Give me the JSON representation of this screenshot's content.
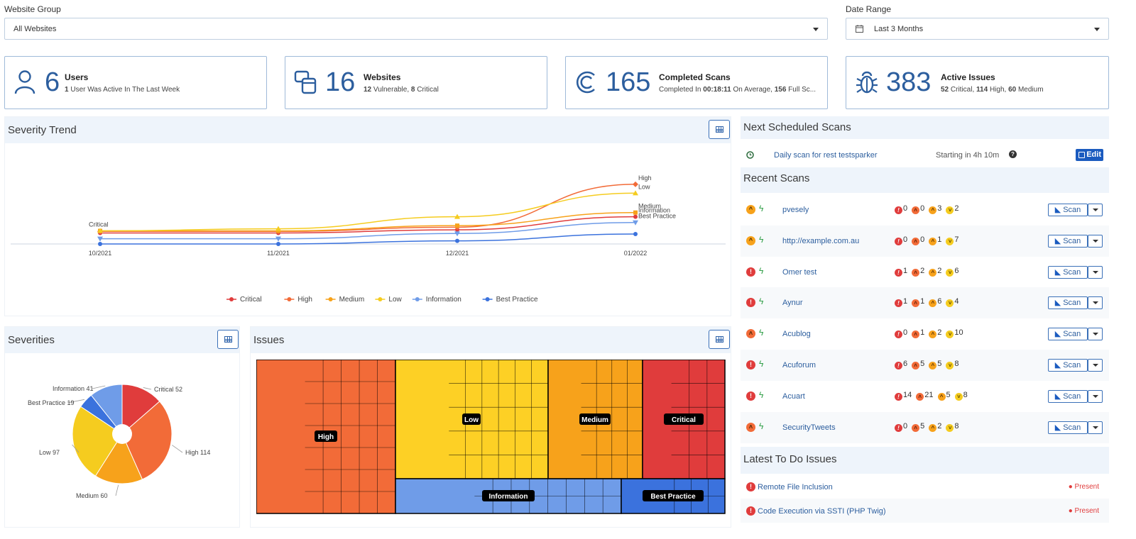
{
  "filters": {
    "website_group_label": "Website Group",
    "website_group_value": "All Websites",
    "date_range_label": "Date Range",
    "date_range_value": "Last 3 Months"
  },
  "cards": [
    {
      "icon": "users-icon",
      "value": "6",
      "title": "Users",
      "sub_bold": "1",
      "sub_rest": " User Was Active In The Last Week"
    },
    {
      "icon": "websites-icon",
      "value": "16",
      "title": "Websites",
      "sub_html": [
        "12",
        " Vulnerable, ",
        "8",
        " Critical"
      ]
    },
    {
      "icon": "scans-icon",
      "value": "165",
      "title": "Completed Scans",
      "sub_html": [
        "Completed In ",
        "00:18:11",
        " On Average, ",
        "156",
        " Full Sc..."
      ]
    },
    {
      "icon": "bug-icon",
      "value": "383",
      "title": "Active Issues",
      "sub_html": [
        "52",
        " Critical, ",
        "114",
        " High, ",
        "60",
        " Medium"
      ]
    }
  ],
  "severity_trend": {
    "title": "Severity Trend",
    "chart_data": {
      "type": "line",
      "categories": [
        "10/2021",
        "11/2021",
        "12/2021",
        "01/2022"
      ],
      "series": [
        {
          "name": "Critical",
          "color": "#e03c3c",
          "values": [
            21,
            21,
            27,
            52
          ],
          "end_label": "Information"
        },
        {
          "name": "High",
          "color": "#f26b38",
          "values": [
            24,
            24,
            32,
            114
          ],
          "end_label": "High"
        },
        {
          "name": "Medium",
          "color": "#f7a21b",
          "values": [
            25,
            25,
            35,
            60
          ],
          "end_label": "Medium"
        },
        {
          "name": "Low",
          "color": "#f5cc1f",
          "values": [
            25,
            29,
            52,
            97
          ],
          "end_label": "Low"
        },
        {
          "name": "Information",
          "color": "#6f9ce8",
          "values": [
            10,
            10,
            20,
            41
          ],
          "end_label": "Best Practice"
        },
        {
          "name": "Best Practice",
          "color": "#3b72dd",
          "values": [
            0,
            0,
            6,
            19
          ],
          "end_label": ""
        }
      ],
      "start_label": "Critical",
      "legend": [
        "Critical",
        "High",
        "Medium",
        "Low",
        "Information",
        "Best Practice"
      ],
      "ylim": [
        0,
        130
      ]
    }
  },
  "severities": {
    "title": "Severities",
    "chart_data": {
      "type": "pie",
      "slices": [
        {
          "label": "Critical",
          "value": 52,
          "color": "#e03c3c",
          "text": "Critical 52"
        },
        {
          "label": "High",
          "value": 114,
          "color": "#f26b38",
          "text": "High 114"
        },
        {
          "label": "Medium",
          "value": 60,
          "color": "#f7a21b",
          "text": "Medium 60"
        },
        {
          "label": "Low",
          "value": 97,
          "color": "#f5cc1f",
          "text": "Low 97"
        },
        {
          "label": "Best Practice",
          "value": 19,
          "color": "#3b72dd",
          "text": "Best Practice 19"
        },
        {
          "label": "Information",
          "value": 41,
          "color": "#6f9ce8",
          "text": "Information 41"
        }
      ]
    }
  },
  "issues": {
    "title": "Issues",
    "groups": [
      {
        "name": "High",
        "color": "#f26b38"
      },
      {
        "name": "Low",
        "color": "#fdd025"
      },
      {
        "name": "Medium",
        "color": "#f7a21b"
      },
      {
        "name": "Critical",
        "color": "#e03c3c"
      },
      {
        "name": "Information",
        "color": "#6f9ce8"
      },
      {
        "name": "Best Practice",
        "color": "#3b72dd"
      }
    ]
  },
  "next_scheduled": {
    "title": "Next Scheduled Scans",
    "name": "Daily scan for rest testsparker",
    "starting": "Starting in 4h 10m",
    "edit_label": "Edit"
  },
  "recent_scans": {
    "title": "Recent Scans",
    "scan_label": "Scan",
    "rows": [
      {
        "name": "pvesely",
        "sev": "m",
        "c": "0",
        "h": "0",
        "m": "3",
        "l": "2"
      },
      {
        "name": "http://example.com.au",
        "sev": "m",
        "c": "0",
        "h": "0",
        "m": "1",
        "l": "7"
      },
      {
        "name": "Omer test",
        "sev": "c",
        "c": "1",
        "h": "2",
        "m": "2",
        "l": "6"
      },
      {
        "name": "Aynur",
        "sev": "c",
        "c": "1",
        "h": "1",
        "m": "6",
        "l": "4"
      },
      {
        "name": "Acublog",
        "sev": "h",
        "c": "0",
        "h": "1",
        "m": "2",
        "l": "10"
      },
      {
        "name": "Acuforum",
        "sev": "c",
        "c": "6",
        "h": "5",
        "m": "5",
        "l": "8"
      },
      {
        "name": "Acuart",
        "sev": "c",
        "c": "14",
        "h": "21",
        "m": "5",
        "l": "8"
      },
      {
        "name": "SecurityTweets",
        "sev": "h",
        "c": "0",
        "h": "5",
        "m": "2",
        "l": "8"
      }
    ]
  },
  "todo": {
    "title": "Latest To Do Issues",
    "items": [
      {
        "title": "Remote File Inclusion",
        "status": "Present"
      },
      {
        "title": "Code Execution via SSTI (PHP Twig)",
        "status": "Present"
      }
    ]
  }
}
